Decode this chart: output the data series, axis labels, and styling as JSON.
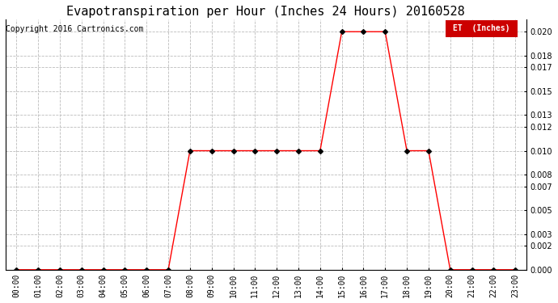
{
  "title": "Evapotranspiration per Hour (Inches 24 Hours) 20160528",
  "copyright": "Copyright 2016 Cartronics.com",
  "legend_label": "ET  (Inches)",
  "legend_bg": "#cc0000",
  "legend_text_color": "#ffffff",
  "line_color": "#ff0000",
  "marker_color": "#000000",
  "hours": [
    "00:00",
    "01:00",
    "02:00",
    "03:00",
    "04:00",
    "05:00",
    "06:00",
    "07:00",
    "08:00",
    "09:00",
    "10:00",
    "11:00",
    "12:00",
    "13:00",
    "14:00",
    "15:00",
    "16:00",
    "17:00",
    "18:00",
    "19:00",
    "20:00",
    "21:00",
    "22:00",
    "23:00"
  ],
  "values": [
    0.0,
    0.0,
    0.0,
    0.0,
    0.0,
    0.0,
    0.0,
    0.0,
    0.01,
    0.01,
    0.01,
    0.01,
    0.01,
    0.01,
    0.01,
    0.02,
    0.02,
    0.02,
    0.01,
    0.01,
    0.0,
    0.0,
    0.0,
    0.0
  ],
  "ylim": [
    0,
    0.021
  ],
  "yticks": [
    0.0,
    0.002,
    0.003,
    0.005,
    0.007,
    0.008,
    0.01,
    0.012,
    0.013,
    0.015,
    0.017,
    0.018,
    0.02
  ],
  "background_color": "#ffffff",
  "grid_color": "#bbbbbb",
  "title_fontsize": 11,
  "tick_fontsize": 7,
  "copyright_fontsize": 7
}
